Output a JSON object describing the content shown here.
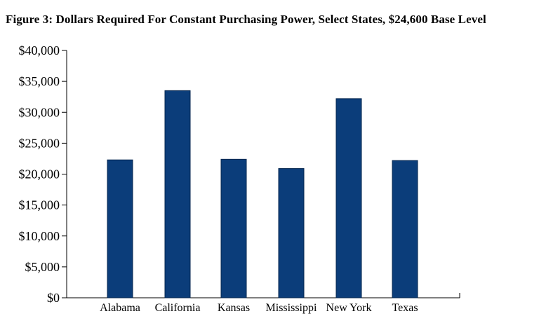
{
  "chart_data": {
    "type": "bar",
    "title": "Figure 3: Dollars Required For Constant Purchasing Power, Select States, $24,600 Base Level",
    "categories": [
      "Alabama",
      "California",
      "Kansas",
      "Mississippi",
      "New York",
      "Texas"
    ],
    "values": [
      22300,
      33500,
      22400,
      20900,
      32200,
      22200
    ],
    "ylim": [
      0,
      40000
    ],
    "yticks": [
      0,
      5000,
      10000,
      15000,
      20000,
      25000,
      30000,
      35000,
      40000
    ],
    "ytick_labels": [
      "$0",
      "$5,000",
      "$10,000",
      "$15,000",
      "$20,000",
      "$25,000",
      "$30,000",
      "$35,000",
      "$40,000"
    ],
    "xlabel": "",
    "ylabel": "",
    "grid": false,
    "bar_color": "#0b3d7a"
  }
}
